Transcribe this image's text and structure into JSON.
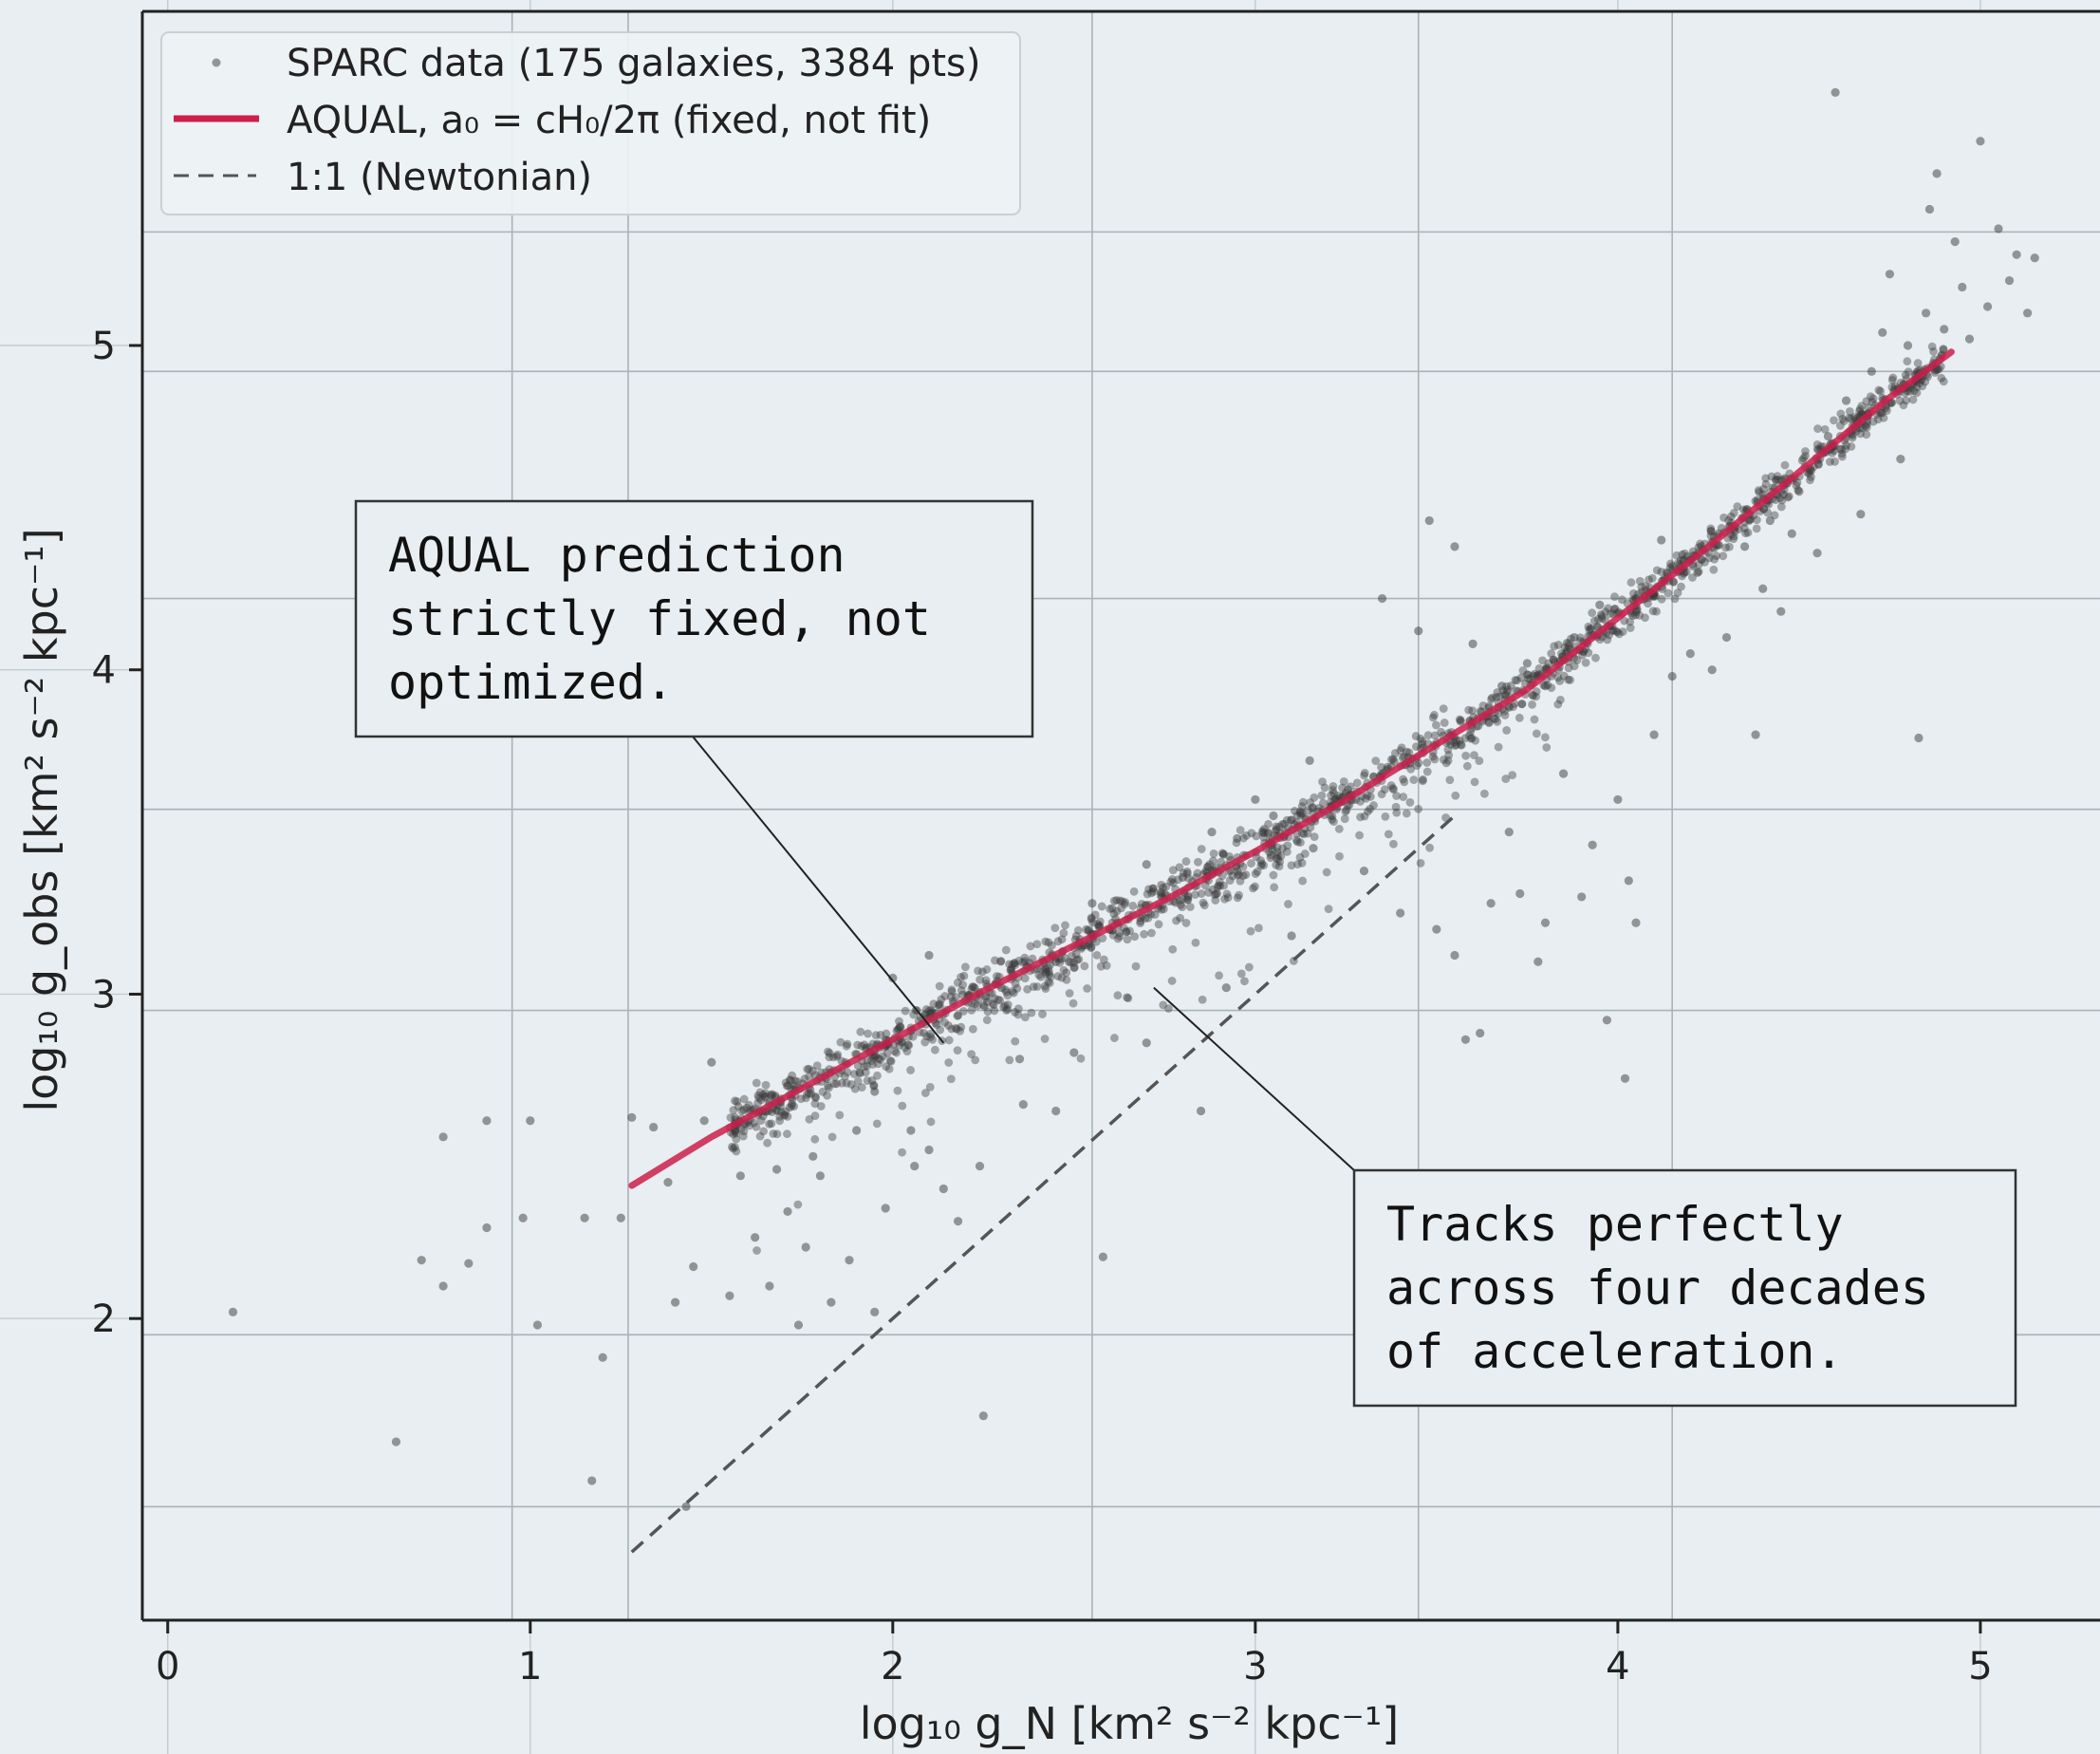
{
  "chart_data": {
    "type": "scatter",
    "title": "",
    "xlabel": "log₁₀ g_N  [km² s⁻² kpc⁻¹]",
    "ylabel": "log₁₀ g_obs  [km² s⁻² kpc⁻¹]",
    "xlim": [
      -0.07,
      5.33
    ],
    "ylim": [
      1.07,
      6.03
    ],
    "xticks": [
      0,
      1,
      2,
      3,
      4,
      5
    ],
    "yticks": [
      2,
      3,
      4,
      5
    ],
    "grid": true,
    "legend_position": "top-left",
    "series": [
      {
        "name": "SPARC data (175 galaxies, 3384 pts)",
        "kind": "scatter",
        "color": "#3a3a3a",
        "points": [
          [
            0.18,
            2.02
          ],
          [
            0.63,
            1.62
          ],
          [
            0.7,
            2.18
          ],
          [
            0.76,
            2.1
          ],
          [
            0.76,
            2.56
          ],
          [
            0.83,
            2.17
          ],
          [
            0.88,
            2.28
          ],
          [
            0.88,
            2.61
          ],
          [
            0.98,
            2.31
          ],
          [
            1.0,
            2.61
          ],
          [
            1.02,
            1.98
          ],
          [
            1.15,
            2.31
          ],
          [
            1.17,
            1.5
          ],
          [
            1.2,
            1.88
          ],
          [
            1.25,
            2.31
          ],
          [
            1.28,
            2.62
          ],
          [
            1.34,
            2.59
          ],
          [
            1.38,
            2.42
          ],
          [
            1.4,
            2.05
          ],
          [
            1.43,
            1.42
          ],
          [
            1.45,
            2.16
          ],
          [
            1.48,
            2.61
          ],
          [
            1.5,
            2.79
          ],
          [
            1.55,
            2.07
          ],
          [
            1.58,
            2.44
          ],
          [
            1.62,
            2.25
          ],
          [
            1.66,
            2.1
          ],
          [
            1.71,
            2.33
          ],
          [
            1.74,
            1.98
          ],
          [
            1.76,
            2.22
          ],
          [
            1.8,
            2.44
          ],
          [
            1.83,
            2.05
          ],
          [
            1.88,
            2.18
          ],
          [
            1.9,
            2.58
          ],
          [
            1.95,
            2.02
          ],
          [
            1.98,
            2.34
          ],
          [
            2.02,
            2.9
          ],
          [
            2.06,
            2.47
          ],
          [
            2.1,
            2.52
          ],
          [
            2.14,
            2.4
          ],
          [
            2.18,
            2.3
          ],
          [
            2.24,
            2.47
          ],
          [
            2.25,
            1.7
          ],
          [
            2.36,
            2.66
          ],
          [
            2.45,
            2.64
          ],
          [
            2.5,
            2.82
          ],
          [
            2.58,
            2.19
          ],
          [
            2.7,
            2.85
          ],
          [
            2.85,
            2.64
          ],
          [
            2.92,
            3.02
          ],
          [
            3.1,
            3.18
          ],
          [
            3.16,
            3.45
          ],
          [
            3.25,
            3.62
          ],
          [
            3.3,
            3.38
          ],
          [
            3.4,
            3.25
          ],
          [
            3.5,
            3.2
          ],
          [
            3.55,
            3.12
          ],
          [
            3.58,
            2.86
          ],
          [
            3.62,
            2.88
          ],
          [
            3.65,
            3.28
          ],
          [
            3.7,
            3.5
          ],
          [
            3.73,
            3.31
          ],
          [
            3.78,
            3.1
          ],
          [
            3.8,
            3.22
          ],
          [
            3.85,
            3.68
          ],
          [
            3.9,
            3.3
          ],
          [
            3.93,
            3.46
          ],
          [
            3.97,
            2.92
          ],
          [
            4.0,
            3.6
          ],
          [
            4.02,
            2.74
          ],
          [
            4.03,
            3.35
          ],
          [
            4.05,
            3.22
          ],
          [
            4.1,
            3.8
          ],
          [
            4.15,
            3.98
          ],
          [
            4.2,
            4.05
          ],
          [
            4.22,
            4.3
          ],
          [
            4.26,
            4.0
          ],
          [
            4.3,
            4.1
          ],
          [
            4.35,
            4.38
          ],
          [
            4.4,
            4.25
          ],
          [
            4.42,
            4.46
          ],
          [
            4.45,
            4.18
          ],
          [
            4.48,
            4.42
          ],
          [
            4.5,
            4.55
          ],
          [
            4.53,
            4.62
          ],
          [
            4.55,
            4.36
          ],
          [
            4.58,
            4.72
          ],
          [
            4.6,
            5.78
          ],
          [
            4.63,
            4.83
          ],
          [
            4.67,
            4.48
          ],
          [
            4.7,
            4.92
          ],
          [
            4.73,
            5.04
          ],
          [
            4.75,
            5.22
          ],
          [
            4.78,
            4.65
          ],
          [
            4.8,
            5.0
          ],
          [
            4.83,
            3.79
          ],
          [
            4.85,
            5.1
          ],
          [
            4.86,
            5.42
          ],
          [
            4.88,
            5.53
          ],
          [
            4.9,
            5.05
          ],
          [
            4.93,
            5.32
          ],
          [
            4.95,
            5.18
          ],
          [
            4.97,
            5.02
          ],
          [
            5.0,
            5.63
          ],
          [
            5.02,
            5.12
          ],
          [
            5.05,
            5.36
          ],
          [
            5.08,
            5.2
          ],
          [
            5.1,
            5.28
          ],
          [
            5.13,
            5.1
          ],
          [
            5.15,
            5.27
          ],
          [
            3.35,
            4.22
          ],
          [
            3.45,
            4.12
          ],
          [
            3.55,
            4.38
          ],
          [
            3.6,
            4.08
          ],
          [
            3.68,
            3.95
          ],
          [
            3.8,
            3.95
          ],
          [
            3.88,
            4.1
          ],
          [
            3.75,
            4.02
          ],
          [
            3.95,
            4.2
          ],
          [
            4.12,
            4.4
          ],
          [
            3.15,
            3.72
          ],
          [
            2.45,
            3.1
          ],
          [
            2.3,
            3.02
          ],
          [
            2.1,
            3.12
          ],
          [
            2.0,
            3.05
          ],
          [
            2.8,
            3.36
          ],
          [
            2.55,
            3.28
          ],
          [
            2.7,
            3.4
          ],
          [
            2.88,
            3.5
          ],
          [
            2.95,
            3.48
          ],
          [
            4.38,
            3.8
          ],
          [
            3.48,
            4.46
          ],
          [
            3.0,
            3.6
          ],
          [
            3.05,
            3.55
          ],
          [
            2.62,
            3.22
          ],
          [
            2.35,
            2.8
          ],
          [
            2.05,
            2.58
          ],
          [
            1.95,
            2.7
          ],
          [
            1.78,
            2.5
          ],
          [
            1.68,
            2.46
          ]
        ]
      },
      {
        "name": "AQUAL, a₀ = cH₀/2π (fixed, not fit)",
        "kind": "line",
        "color": "#cc1f4a",
        "x": [
          1.28,
          1.5,
          1.75,
          2.0,
          2.25,
          2.5,
          2.75,
          3.0,
          3.25,
          3.5,
          3.75,
          4.0,
          4.25,
          4.5,
          4.75,
          4.92
        ],
        "y": [
          2.41,
          2.56,
          2.71,
          2.86,
          3.01,
          3.15,
          3.29,
          3.44,
          3.6,
          3.77,
          3.94,
          4.16,
          4.38,
          4.61,
          4.84,
          4.98
        ]
      },
      {
        "name": "1:1 (Newtonian)",
        "kind": "line",
        "dashed": true,
        "color": "#555555",
        "x": [
          1.28,
          3.55
        ],
        "y": [
          1.28,
          3.55
        ]
      }
    ],
    "annotations": [
      {
        "text": [
          "AQUAL prediction",
          "strictly fixed, not",
          "optimized."
        ],
        "points_to": [
          2.14,
          2.85
        ]
      },
      {
        "text": [
          "Tracks perfectly",
          "across four decades",
          "of acceleration."
        ],
        "points_to": [
          2.72,
          3.02
        ]
      }
    ]
  },
  "figure": {
    "background": "#e8eef1",
    "axes_background": "#e8eef1"
  }
}
